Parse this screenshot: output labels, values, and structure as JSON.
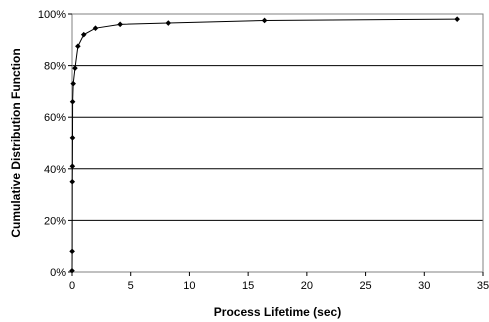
{
  "chart_data": {
    "type": "line",
    "title": "",
    "xlabel": "Process Lifetime (sec)",
    "ylabel": "Cumulative Distribution Function",
    "xlim": [
      0,
      35
    ],
    "ylim": [
      0,
      100
    ],
    "x_ticks": [
      0,
      5,
      10,
      15,
      20,
      25,
      30,
      35
    ],
    "x_tick_labels": [
      "0",
      "5",
      "10",
      "15",
      "20",
      "25",
      "30",
      "35"
    ],
    "y_ticks": [
      0,
      20,
      40,
      60,
      80,
      100
    ],
    "y_tick_labels": [
      "0%",
      "20%",
      "40%",
      "60%",
      "80%",
      "100%"
    ],
    "grid": "horizontal",
    "legend": "none",
    "series": [
      {
        "color": "#000000",
        "marker": "diamond",
        "points": [
          [
            0.0,
            0.5
          ],
          [
            0.01,
            8
          ],
          [
            0.02,
            35
          ],
          [
            0.03,
            41
          ],
          [
            0.04,
            52
          ],
          [
            0.05,
            66
          ],
          [
            0.1,
            73
          ],
          [
            0.25,
            79
          ],
          [
            0.5,
            87.5
          ],
          [
            1.0,
            92
          ],
          [
            2.0,
            94.5
          ],
          [
            4.1,
            96
          ],
          [
            8.2,
            96.5
          ],
          [
            16.4,
            97.5
          ],
          [
            32.8,
            98
          ]
        ]
      }
    ]
  }
}
